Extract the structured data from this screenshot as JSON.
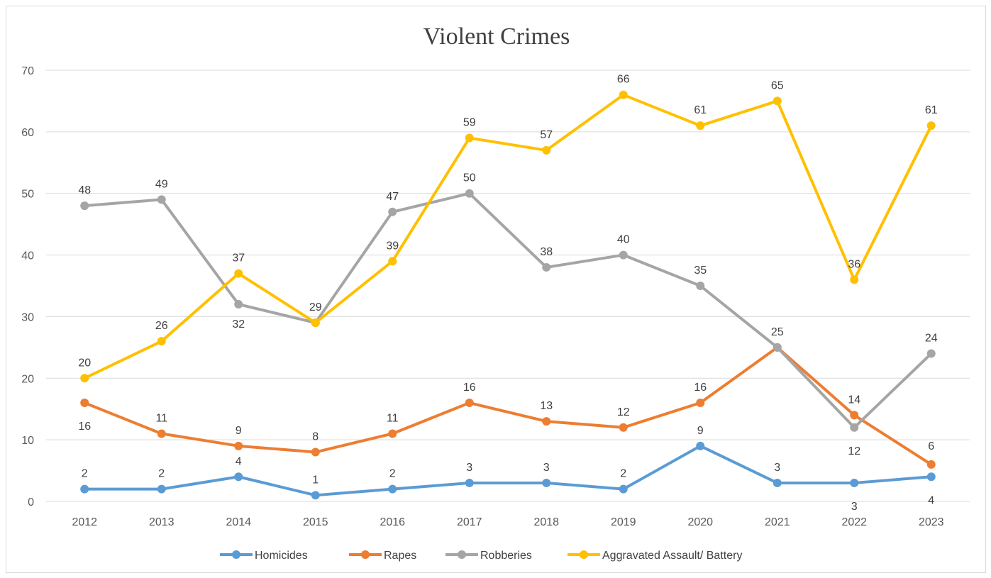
{
  "chart_data": {
    "type": "line",
    "title": "Violent Crimes",
    "xlabel": "",
    "ylabel": "",
    "categories": [
      "2012",
      "2013",
      "2014",
      "2015",
      "2016",
      "2017",
      "2018",
      "2019",
      "2020",
      "2021",
      "2022",
      "2023"
    ],
    "ylim": [
      0,
      70
    ],
    "yticks": [
      0,
      10,
      20,
      30,
      40,
      50,
      60,
      70
    ],
    "grid": true,
    "legend_position": "bottom",
    "series": [
      {
        "name": "Homicides",
        "color": "#5b9bd5",
        "values": [
          2,
          2,
          4,
          1,
          2,
          3,
          3,
          2,
          9,
          3,
          3,
          4
        ]
      },
      {
        "name": "Rapes",
        "color": "#ed7d31",
        "values": [
          16,
          11,
          9,
          8,
          11,
          16,
          13,
          12,
          16,
          25,
          14,
          6
        ]
      },
      {
        "name": "Robberies",
        "color": "#a5a5a5",
        "values": [
          48,
          49,
          32,
          29,
          47,
          50,
          38,
          40,
          35,
          25,
          12,
          24
        ]
      },
      {
        "name": "Aggravated Assault/ Battery",
        "color": "#ffc000",
        "values": [
          20,
          26,
          37,
          29,
          39,
          59,
          57,
          66,
          61,
          65,
          36,
          61
        ]
      }
    ]
  }
}
